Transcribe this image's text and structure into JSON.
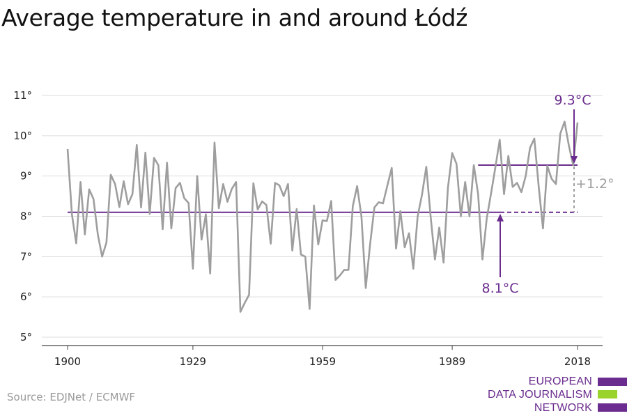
{
  "chart_data": {
    "type": "line",
    "title": "Average temperature in and around Łódź",
    "xlabel": "",
    "ylabel": "",
    "xlim": [
      1900,
      2018
    ],
    "ylim": [
      5,
      11
    ],
    "x_ticks": [
      "1900",
      "1929",
      "1959",
      "1989",
      "2018"
    ],
    "y_ticks": [
      "5°",
      "6°",
      "7°",
      "8°",
      "9°",
      "10°",
      "11°"
    ],
    "grid": true,
    "x": [
      1900,
      1901,
      1902,
      1903,
      1904,
      1905,
      1906,
      1907,
      1908,
      1909,
      1910,
      1911,
      1912,
      1913,
      1914,
      1915,
      1916,
      1917,
      1918,
      1919,
      1920,
      1921,
      1922,
      1923,
      1924,
      1925,
      1926,
      1927,
      1928,
      1929,
      1930,
      1931,
      1932,
      1933,
      1934,
      1935,
      1936,
      1937,
      1938,
      1939,
      1940,
      1941,
      1942,
      1943,
      1944,
      1945,
      1946,
      1947,
      1948,
      1949,
      1950,
      1951,
      1952,
      1953,
      1954,
      1955,
      1956,
      1957,
      1958,
      1959,
      1960,
      1961,
      1962,
      1963,
      1964,
      1965,
      1966,
      1967,
      1968,
      1969,
      1970,
      1971,
      1972,
      1973,
      1974,
      1975,
      1976,
      1977,
      1978,
      1979,
      1980,
      1981,
      1982,
      1983,
      1984,
      1985,
      1986,
      1987,
      1988,
      1989,
      1990,
      1991,
      1992,
      1993,
      1994,
      1995,
      1996,
      1997,
      1998,
      1999,
      2000,
      2001,
      2002,
      2003,
      2004,
      2005,
      2006,
      2007,
      2008,
      2009,
      2010,
      2011,
      2012,
      2013,
      2014,
      2015,
      2016,
      2017,
      2018
    ],
    "series": [
      {
        "name": "",
        "color": "#9e9e9e",
        "values": [
          9.67,
          8.05,
          7.33,
          8.85,
          7.55,
          8.67,
          8.43,
          7.55,
          7.0,
          7.35,
          9.03,
          8.8,
          8.23,
          8.87,
          8.3,
          8.55,
          9.77,
          8.22,
          9.58,
          8.06,
          9.45,
          9.27,
          7.68,
          9.33,
          7.7,
          8.7,
          8.83,
          8.45,
          8.33,
          6.7,
          9.0,
          7.42,
          8.05,
          6.58,
          9.83,
          8.2,
          8.8,
          8.36,
          8.68,
          8.85,
          5.63,
          5.85,
          6.05,
          8.82,
          8.17,
          8.37,
          8.28,
          7.32,
          8.83,
          8.77,
          8.5,
          8.8,
          7.15,
          8.18,
          7.05,
          7.0,
          5.7,
          8.27,
          7.3,
          7.9,
          7.88,
          8.38,
          6.42,
          6.53,
          6.67,
          6.67,
          8.25,
          8.75,
          8.0,
          6.22,
          7.3,
          8.22,
          8.35,
          8.32,
          8.77,
          9.2,
          7.2,
          8.13,
          7.23,
          7.58,
          6.7,
          8.0,
          8.53,
          9.23,
          8.0,
          6.93,
          7.72,
          6.85,
          8.7,
          9.57,
          9.3,
          8.0,
          8.85,
          8.0,
          9.27,
          8.55,
          6.93,
          7.95,
          8.57,
          9.22,
          9.9,
          8.55,
          9.5,
          8.73,
          8.83,
          8.6,
          9.0,
          9.7,
          9.93,
          8.75,
          7.7,
          9.25,
          8.93,
          8.8,
          10.05,
          10.35,
          9.75,
          9.27,
          10.33
        ]
      }
    ],
    "reference_lines": [
      {
        "name": "baseline",
        "value": 8.1,
        "color": "#6a2c8e",
        "solid_from": 1900,
        "dashed_to": 2018
      },
      {
        "name": "recent",
        "value": 9.27,
        "color": "#6a2c8e",
        "from": 1995,
        "to": 2018
      }
    ],
    "annotations": [
      {
        "text": "9.3°C",
        "color": "#6a2c8e",
        "x": 2018,
        "y": 9.27
      },
      {
        "text": "8.1°C",
        "color": "#6a2c8e",
        "x": 1996,
        "y": 8.1
      },
      {
        "text": "+1.2°",
        "color": "#9e9e9e",
        "x": 2018,
        "y": 8.7
      }
    ]
  },
  "footer": {
    "source": "Source: EDJNet / ECMWF",
    "logo_lines": [
      "EUROPEAN",
      "DATA JOURNALISM",
      "NETWORK"
    ],
    "logo_colors": [
      "#6a2c8e",
      "#9bd32d",
      "#6a2c8e"
    ]
  }
}
